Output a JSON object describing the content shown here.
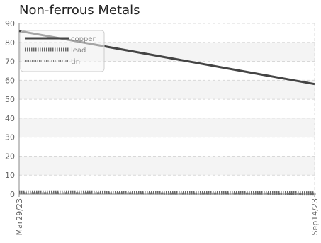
{
  "chart_data": {
    "type": "line",
    "title": "Non-ferrous Metals",
    "xlabel": "",
    "ylabel": "",
    "x_tick_labels": [
      "Mar29/23",
      "Sep14/23"
    ],
    "y_ticks": [
      0,
      10,
      20,
      30,
      40,
      50,
      60,
      70,
      80,
      90
    ],
    "ylim": [
      0,
      90
    ],
    "grid": true,
    "legend_position": "top-left",
    "series": [
      {
        "name": "copper",
        "values": [
          86,
          58
        ],
        "color": "#444444",
        "style": "solid"
      },
      {
        "name": "lead",
        "values": [
          1.0,
          1.0,
          0.7,
          0.7,
          0.5
        ],
        "color": "#666666",
        "style": "dense-dotted"
      },
      {
        "name": "tin",
        "values": [
          0.4,
          0.4,
          0.3,
          0.3,
          0.2
        ],
        "color": "#777777",
        "style": "fine-dotted"
      }
    ]
  }
}
